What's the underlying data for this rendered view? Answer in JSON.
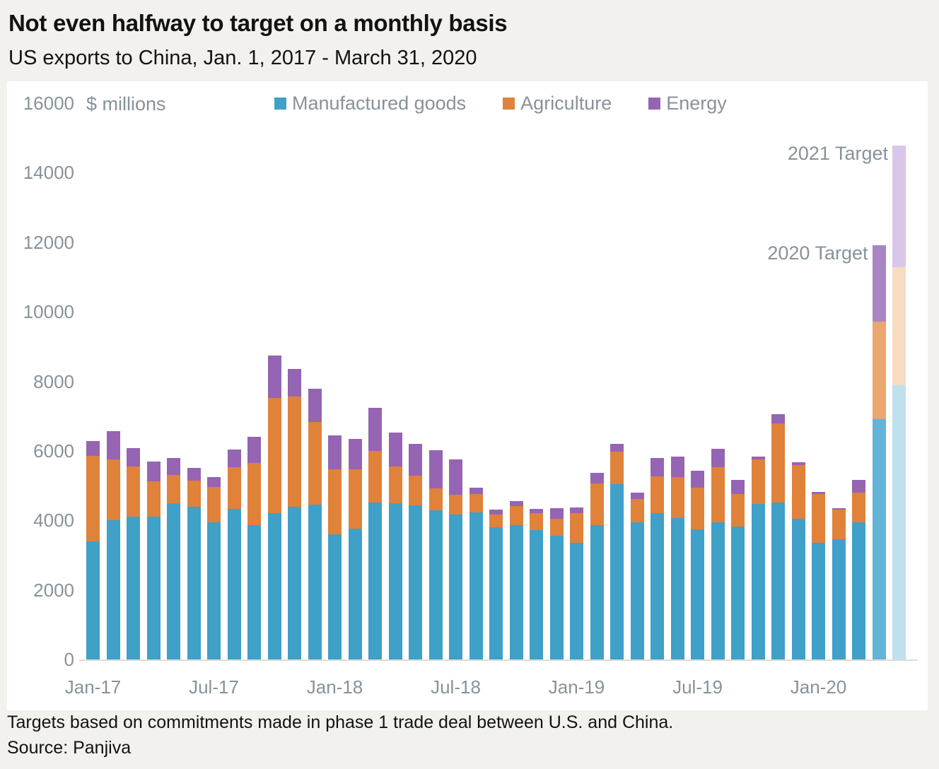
{
  "header": {
    "title": "Not even halfway to target on a monthly basis",
    "subtitle": "US exports to China, Jan. 1, 2017 - March 31, 2020"
  },
  "footer": {
    "note": "Targets based on commitments made in phase 1 trade deal between U.S. and China.",
    "source": "Source: Panjiva"
  },
  "colors": {
    "background": "#f2f1ee",
    "panel": "#ffffff",
    "axis_text": "#87929a",
    "axis_line": "#dcdcda",
    "title_text": "#121212",
    "palettes": {
      "default": {
        "manufactured": "#3fa0c8",
        "agriculture": "#e0823a",
        "energy": "#9564b2"
      },
      "target2020": {
        "manufactured": "#63b5d8",
        "agriculture": "#eba770",
        "energy": "#aa85c6"
      },
      "target2021": {
        "manufactured": "#bfe0ef",
        "agriculture": "#f7dcc2",
        "energy": "#d8c7e8"
      }
    }
  },
  "chart_data": {
    "type": "bar",
    "stacked": true,
    "title": "Not even halfway to target on a monthly basis",
    "subtitle": "US exports to China, Jan. 1, 2017 - March 31, 2020",
    "unit_label": "$ millions",
    "ylabel": "$ millions",
    "ylim": [
      0,
      16000
    ],
    "yticks": [
      0,
      2000,
      4000,
      6000,
      8000,
      10000,
      12000,
      14000,
      16000
    ],
    "grid": false,
    "legend_position": "top",
    "categories": [
      "Jan-17",
      "Feb-17",
      "Mar-17",
      "Apr-17",
      "May-17",
      "Jun-17",
      "Jul-17",
      "Aug-17",
      "Sep-17",
      "Oct-17",
      "Nov-17",
      "Dec-17",
      "Jan-18",
      "Feb-18",
      "Mar-18",
      "Apr-18",
      "May-18",
      "Jun-18",
      "Jul-18",
      "Aug-18",
      "Sep-18",
      "Oct-18",
      "Nov-18",
      "Dec-18",
      "Jan-19",
      "Feb-19",
      "Mar-19",
      "Apr-19",
      "May-19",
      "Jun-19",
      "Jul-19",
      "Aug-19",
      "Sep-19",
      "Oct-19",
      "Nov-19",
      "Dec-19",
      "Jan-20",
      "Feb-20",
      "Mar-20",
      "2020 Target",
      "2021 Target"
    ],
    "series": [
      {
        "name": "Manufactured goods",
        "values": [
          3400,
          4000,
          4100,
          4100,
          4490,
          4390,
          3950,
          4330,
          3860,
          4200,
          4400,
          4460,
          3590,
          3760,
          4510,
          4500,
          4440,
          4290,
          4160,
          4230,
          3810,
          3860,
          3720,
          3550,
          3350,
          3860,
          5050,
          3950,
          4200,
          4060,
          3740,
          3950,
          3830,
          4470,
          4520,
          4050,
          3350,
          3460,
          3950,
          6920,
          7890
        ]
      },
      {
        "name": "Agriculture",
        "values": [
          2450,
          1750,
          1450,
          1020,
          820,
          750,
          1020,
          1200,
          1800,
          3330,
          3170,
          2370,
          1880,
          1700,
          1490,
          1040,
          840,
          630,
          570,
          520,
          360,
          560,
          480,
          490,
          850,
          1200,
          920,
          660,
          1060,
          1190,
          1210,
          1580,
          930,
          1280,
          2280,
          1540,
          1400,
          840,
          850,
          2790,
          3390
        ]
      },
      {
        "name": "Energy",
        "values": [
          430,
          820,
          520,
          580,
          490,
          370,
          280,
          510,
          750,
          1210,
          780,
          950,
          970,
          880,
          1230,
          990,
          920,
          1090,
          1030,
          200,
          130,
          140,
          140,
          310,
          180,
          300,
          230,
          190,
          540,
          580,
          480,
          530,
          410,
          80,
          250,
          80,
          60,
          60,
          360,
          2210,
          3500
        ]
      }
    ],
    "bar_styles": {
      "2020 Target": "target2020",
      "2021 Target": "target2021"
    },
    "x_tick_labels": [
      "Jan-17",
      "Jul-17",
      "Jan-18",
      "Jul-18",
      "Jan-19",
      "Jul-19",
      "Jan-20"
    ],
    "x_tick_indices": [
      0,
      6,
      12,
      18,
      24,
      30,
      36
    ],
    "annotations": [
      {
        "label": "2020 Target",
        "category_index": 39
      },
      {
        "label": "2021 Target",
        "category_index": 40
      }
    ],
    "legend": [
      {
        "label": "Manufactured goods",
        "color": "#3fa0c8"
      },
      {
        "label": "Agriculture",
        "color": "#e0823a"
      },
      {
        "label": "Energy",
        "color": "#9564b2"
      }
    ]
  }
}
